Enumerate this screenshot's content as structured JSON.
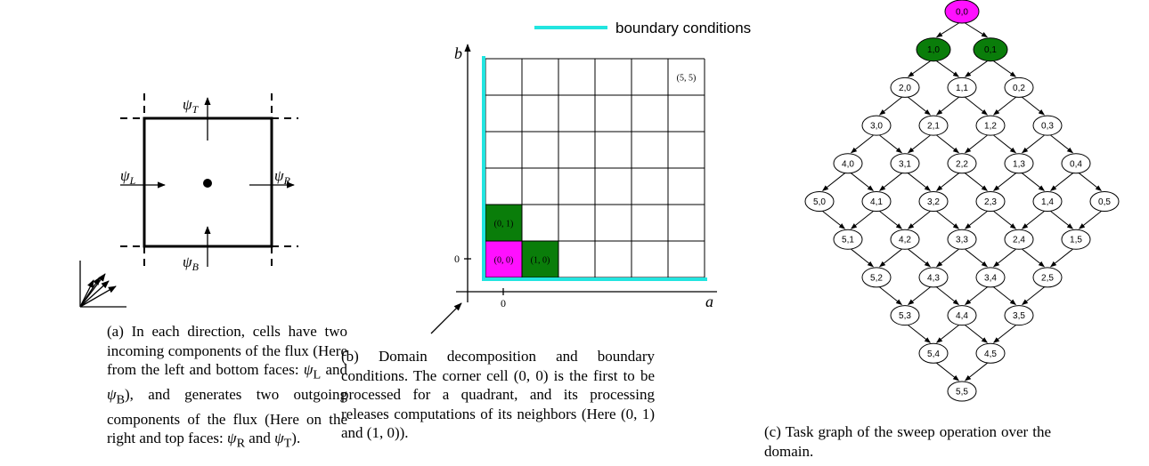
{
  "panel_a": {
    "labels": [
      {
        "base": "ψ",
        "sub": "T"
      },
      {
        "base": "ψ",
        "sub": "L"
      },
      {
        "base": "ψ",
        "sub": "R"
      },
      {
        "base": "ψ",
        "sub": "B"
      }
    ],
    "caption": [
      "(a) In each direction, cells have two incoming components of the flux (Here from the left and bottom faces: ",
      "ψ",
      "L",
      " and ",
      "ψ",
      "B",
      "), and generates two outgoing components of the flux (Here on the right and top faces: ",
      "ψ",
      "R",
      " and ",
      "ψ",
      "T",
      ")."
    ]
  },
  "panel_b": {
    "legend": {
      "label": "boundary conditions",
      "color": "#22e5e0"
    },
    "x_label": "a",
    "y_label": "b",
    "x_tick": "0",
    "y_tick": "0",
    "cells": [
      {
        "label": "(5, 5)"
      },
      {
        "label": "(0, 1)",
        "color": "#0a7d0a"
      },
      {
        "label": "(0, 0)",
        "color": "#ff10ff"
      },
      {
        "label": "(1, 0)",
        "color": "#0a7d0a"
      }
    ],
    "caption": "(b) Domain decomposition and boundary conditions. The corner cell (0, 0) is the first to be processed for a quadrant, and its processing releases computations of its neighbors (Here (0, 1) and (1, 0))."
  },
  "panel_c": {
    "nodes": [
      {
        "label": "0,0",
        "color": "#ff10ff"
      },
      {
        "label": "1,0",
        "color": "#0a7d0a"
      },
      {
        "label": "0,1",
        "color": "#0a7d0a"
      },
      {
        "label": "2,0"
      },
      {
        "label": "1,1"
      },
      {
        "label": "0,2"
      },
      {
        "label": "3,0"
      },
      {
        "label": "2,1"
      },
      {
        "label": "1,2"
      },
      {
        "label": "0,3"
      },
      {
        "label": "4,0"
      },
      {
        "label": "3,1"
      },
      {
        "label": "2,2"
      },
      {
        "label": "1,3"
      },
      {
        "label": "0,4"
      },
      {
        "label": "5,0"
      },
      {
        "label": "4,1"
      },
      {
        "label": "3,2"
      },
      {
        "label": "2,3"
      },
      {
        "label": "1,4"
      },
      {
        "label": "0,5"
      },
      {
        "label": "5,1"
      },
      {
        "label": "4,2"
      },
      {
        "label": "3,3"
      },
      {
        "label": "2,4"
      },
      {
        "label": "1,5"
      },
      {
        "label": "5,2"
      },
      {
        "label": "4,3"
      },
      {
        "label": "3,4"
      },
      {
        "label": "2,5"
      },
      {
        "label": "5,3"
      },
      {
        "label": "4,4"
      },
      {
        "label": "3,5"
      },
      {
        "label": "5,4"
      },
      {
        "label": "4,5"
      },
      {
        "label": "5,5"
      }
    ],
    "caption": "(c) Task graph of the sweep operation over the domain."
  }
}
